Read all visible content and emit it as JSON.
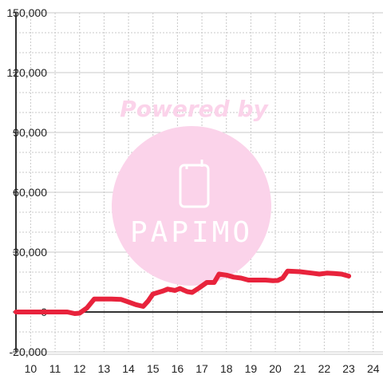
{
  "watermark": {
    "tagline": "Powered by",
    "brand": "PAPIMO",
    "color": "#fbd3ea",
    "icon": "phone-icon"
  },
  "chart_data": {
    "type": "line",
    "title": "",
    "xlabel": "",
    "ylabel": "",
    "xlim": [
      9.4,
      24.4
    ],
    "ylim": [
      -20000,
      150000
    ],
    "x_ticks": [
      10,
      11,
      12,
      13,
      14,
      15,
      16,
      17,
      18,
      19,
      20,
      21,
      22,
      23,
      24
    ],
    "x_tick_labels": [
      "10",
      "11",
      "12",
      "13",
      "14",
      "15",
      "16",
      "17",
      "18",
      "19",
      "20",
      "21",
      "22",
      "23",
      "24"
    ],
    "y_ticks": [
      -20000,
      0,
      30000,
      60000,
      90000,
      120000,
      150000
    ],
    "y_tick_labels": [
      "-20,000",
      "0",
      "30,000",
      "60,000",
      "90,000",
      "120,000",
      "150,000"
    ],
    "grid": true,
    "colors": {
      "line": "#e8233c",
      "grid": "#c8c8c8",
      "axis": "#333333"
    },
    "series": [
      {
        "x": [
          9.4,
          10,
          10.5,
          11,
          11.5,
          11.8,
          12,
          12.3,
          12.6,
          13,
          13.3,
          13.7,
          14,
          14.3,
          14.6,
          14.8,
          15,
          15.4,
          15.6,
          15.9,
          16.1,
          16.4,
          16.6,
          16.9,
          17.2,
          17.5,
          17.7,
          18,
          18.3,
          18.6,
          18.9,
          19.3,
          19.6,
          19.9,
          20.1,
          20.3,
          20.5,
          21,
          21.5,
          21.8,
          22.1,
          22.4,
          22.7,
          23
        ],
        "y": [
          0,
          0,
          0,
          0,
          0,
          -800,
          -600,
          2000,
          6500,
          6500,
          6500,
          6300,
          5000,
          3700,
          2800,
          5500,
          9000,
          10500,
          11500,
          10800,
          11800,
          10200,
          9800,
          12200,
          14800,
          14800,
          19000,
          18500,
          17500,
          17000,
          16000,
          16000,
          16000,
          15700,
          15800,
          17000,
          20500,
          20200,
          19500,
          19000,
          19500,
          19300,
          19000,
          18000
        ]
      }
    ]
  }
}
